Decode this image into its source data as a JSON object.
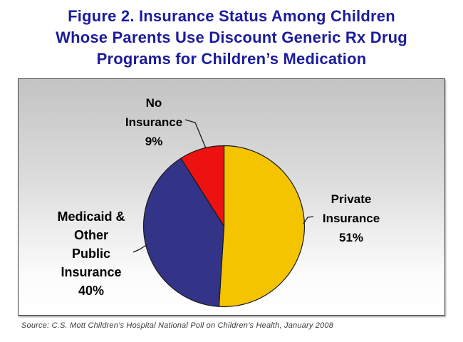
{
  "title": {
    "lines": [
      "Figure 2. Insurance Status Among Children",
      "Whose Parents Use Discount Generic Rx Drug",
      "Programs for Children’s Medication"
    ]
  },
  "labels": {
    "no_insurance": {
      "lines": [
        "No",
        "Insurance",
        "9%"
      ]
    },
    "medicaid": {
      "lines": [
        "Medicaid &",
        "Other",
        "Public",
        "Insurance",
        "40%"
      ]
    },
    "private": {
      "lines": [
        "Private",
        "Insurance",
        "51%"
      ]
    }
  },
  "source": "Source: C.S. Mott Children’s Hospital National Poll on Children’s Health, January 2008",
  "colors": {
    "title_text": "#1c1c9c",
    "label_text": "#000000",
    "slice_outline": "#1a1a1a",
    "leader_line": "#1a1a1a",
    "panel_top": "#c3c3c3",
    "panel_bottom": "#ffffff"
  },
  "chart_data": {
    "type": "pie",
    "title": "Insurance Status Among Children Whose Parents Use Discount Generic Rx Drug Programs for Children's Medication",
    "unit": "%",
    "start_angle_deg": -90,
    "direction": "clockwise",
    "slices": [
      {
        "label": "Private Insurance",
        "value": 51,
        "color": "#f5c400"
      },
      {
        "label": "Medicaid & Other Public Insurance",
        "value": 40,
        "color": "#333387"
      },
      {
        "label": "No Insurance",
        "value": 9,
        "color": "#ee1111"
      }
    ]
  }
}
